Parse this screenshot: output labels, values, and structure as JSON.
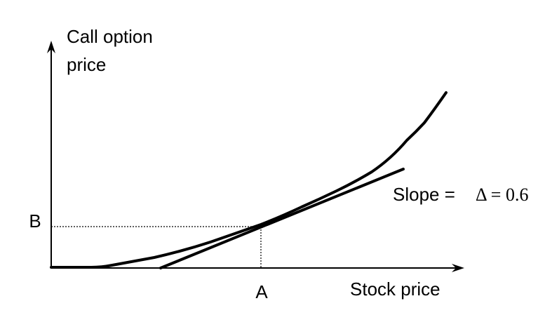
{
  "diagram": {
    "y_axis_label": [
      "Call option",
      "price"
    ],
    "x_axis_label": "Stock price",
    "point_a_label": "A",
    "point_b_label": "B",
    "slope_label": "Slope =",
    "delta_label": "Δ = 0.6"
  }
}
